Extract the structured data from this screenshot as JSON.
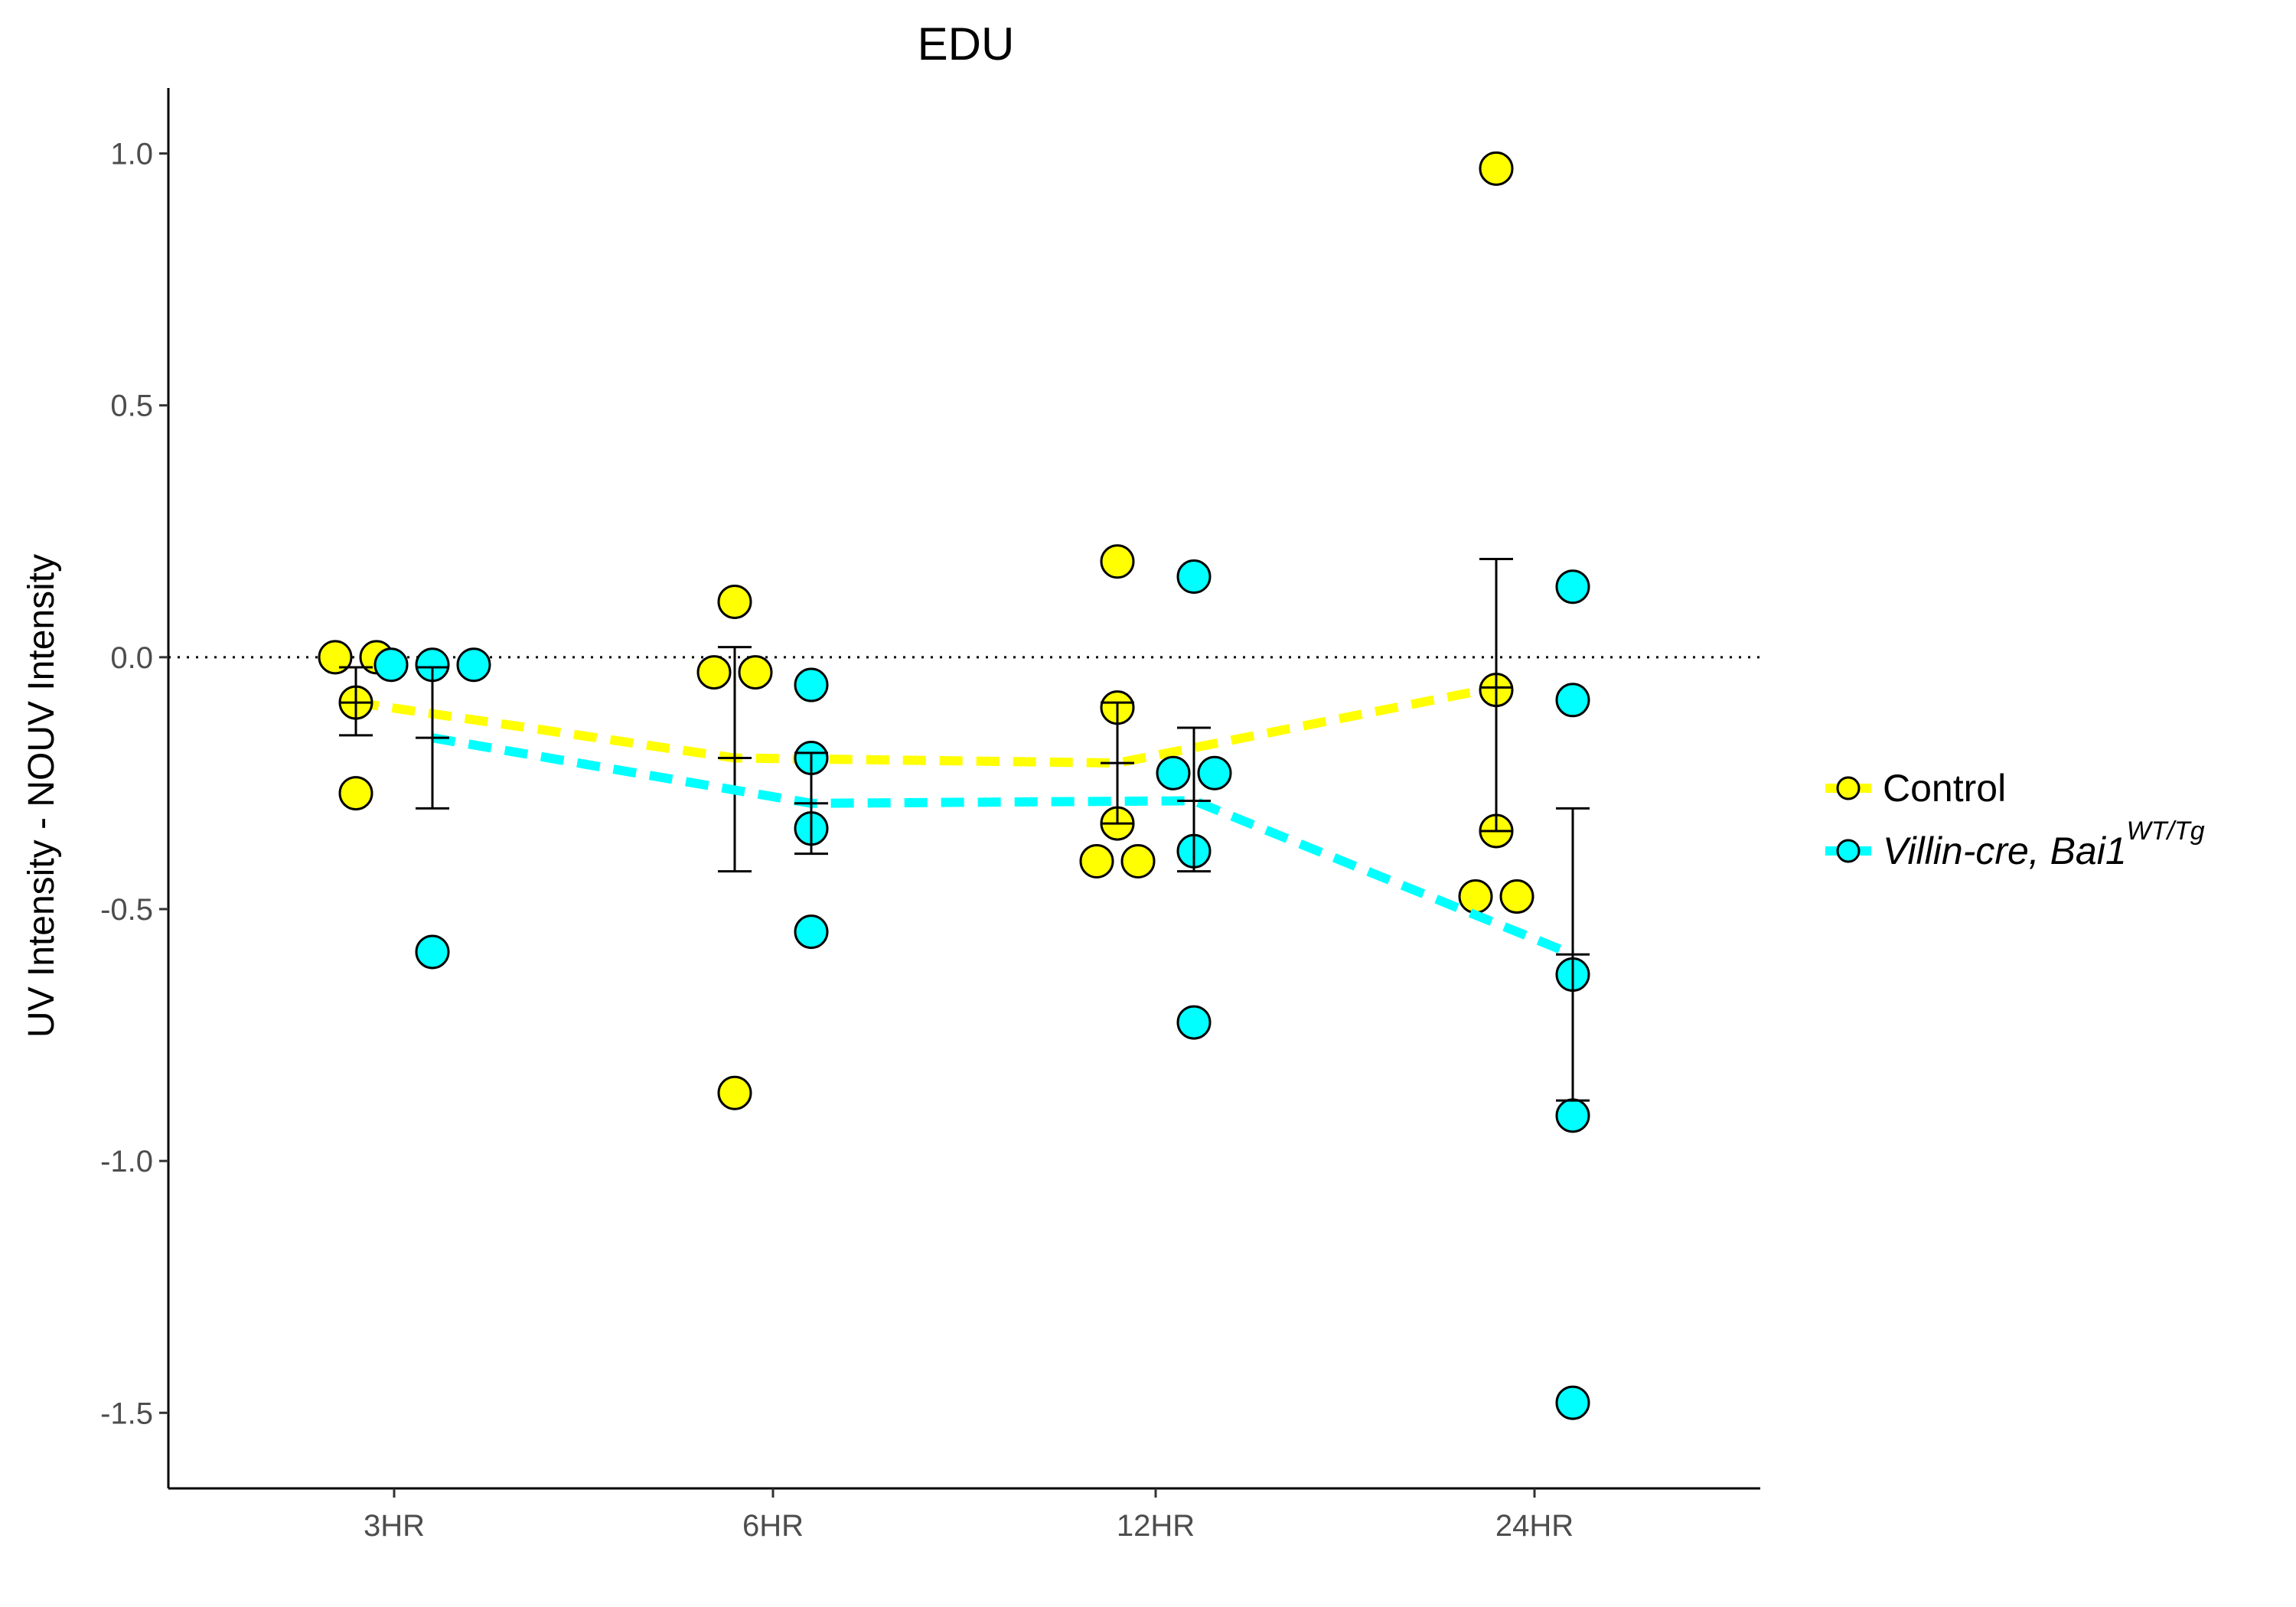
{
  "chart_data": {
    "type": "scatter",
    "title": "EDU",
    "xlabel": "",
    "ylabel": "UV Intensity - NOUV Intensity",
    "categories": [
      "3HR",
      "6HR",
      "12HR",
      "24HR"
    ],
    "ylim": [
      -1.65,
      1.13
    ],
    "yticks": [
      1.0,
      0.5,
      0.0,
      -0.5,
      -1.0,
      -1.5
    ],
    "ytick_labels": [
      "1.0",
      "0.5",
      "0.0",
      "-0.5",
      "-1.0",
      "-1.5"
    ],
    "reference_line": {
      "y": 0,
      "style": "dotted"
    },
    "grid": false,
    "legend_position": "right",
    "series": [
      {
        "name": "Control",
        "color": "#ffff00",
        "line_style": "dashed",
        "mean": [
          -0.09,
          -0.2,
          -0.21,
          -0.06
        ],
        "error_low": [
          -0.155,
          -0.425,
          -0.33,
          -0.345
        ],
        "error_high": [
          -0.02,
          0.02,
          -0.09,
          0.195
        ],
        "points": [
          [
            0.0,
            0.0,
            -0.09,
            -0.27
          ],
          [
            0.11,
            -0.03,
            -0.03,
            -0.865
          ],
          [
            0.19,
            -0.1,
            -0.33,
            -0.405,
            -0.405
          ],
          [
            0.97,
            -0.065,
            -0.345,
            -0.475,
            -0.475
          ]
        ]
      },
      {
        "name_main": "Villin-cre, Bai1",
        "name_sup": "WT/Tg",
        "color": "#00ffff",
        "line_style": "dashed",
        "mean": [
          -0.16,
          -0.29,
          -0.285,
          -0.59
        ],
        "error_low": [
          -0.3,
          -0.39,
          -0.425,
          -0.88
        ],
        "error_high": [
          -0.02,
          -0.19,
          -0.14,
          -0.3
        ],
        "points": [
          [
            -0.015,
            -0.015,
            -0.015,
            -0.585
          ],
          [
            -0.055,
            -0.2,
            -0.34,
            -0.545
          ],
          [
            0.16,
            -0.23,
            -0.23,
            -0.385,
            -0.725
          ],
          [
            0.14,
            -0.085,
            -0.63,
            -0.91,
            -1.48
          ]
        ]
      }
    ]
  }
}
